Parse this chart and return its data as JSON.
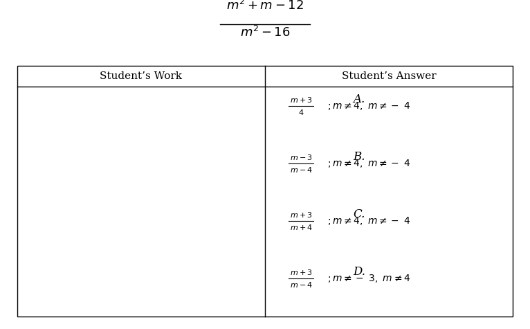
{
  "title_numerator": "$m^2 + m - 12$",
  "title_denominator": "$m^2-16$",
  "col1_header": "Student’s Work",
  "col2_header": "Student’s Answer",
  "answers": [
    {
      "label": "A.",
      "fraction_num": "$m+3$",
      "fraction_den": "$4$",
      "condition": "$; m \\neq 4,\\ m \\neq -\\ 4$"
    },
    {
      "label": "B.",
      "fraction_num": "$m-3$",
      "fraction_den": "$m-4$",
      "condition": "$; m \\neq 4,\\ m \\neq -\\ 4$"
    },
    {
      "label": "C.",
      "fraction_num": "$m+3$",
      "fraction_den": "$m+4$",
      "condition": "$; m \\neq 4,\\ m\\neq -\\ 4$"
    },
    {
      "label": "D.",
      "fraction_num": "$m+3$",
      "fraction_den": "$m-4$",
      "condition": "$; m \\neq -\\ 3,\\ m \\neq 4$"
    }
  ],
  "bg_color": "#ffffff",
  "text_color": "#000000",
  "border_color": "#000000",
  "fig_width": 7.66,
  "fig_height": 4.75,
  "dpi": 100
}
